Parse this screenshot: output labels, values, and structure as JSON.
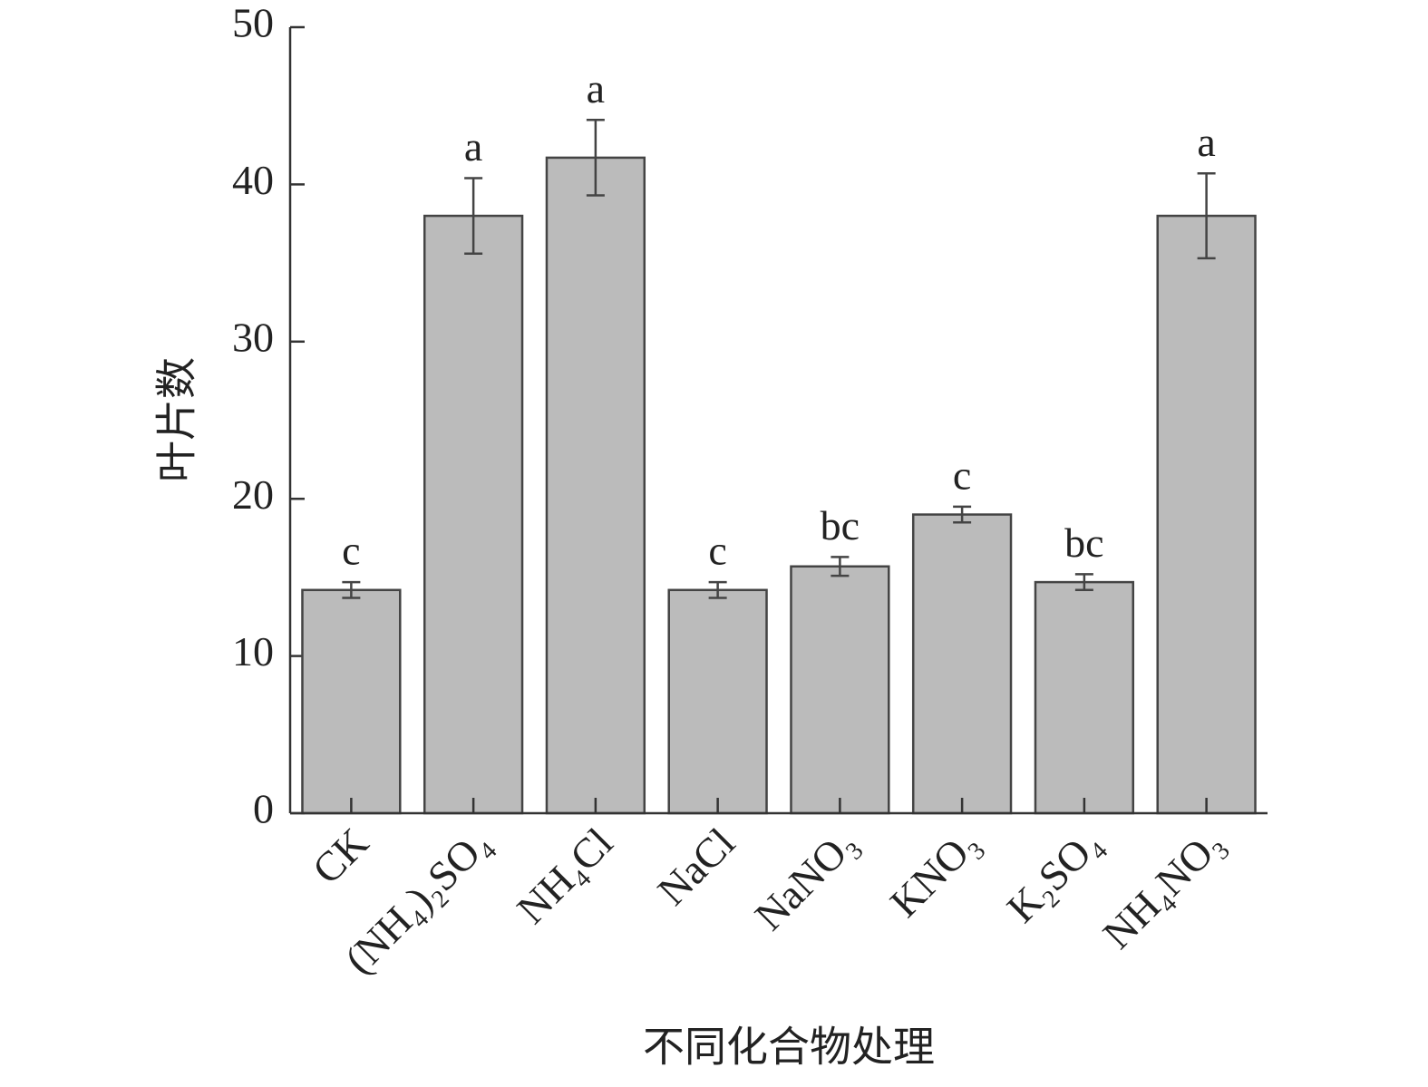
{
  "chart_data": {
    "type": "bar",
    "x_label": "不同化合物处理",
    "y_label": "叶片数",
    "categories": [
      "CK",
      "(NH₄)₂SO₄",
      "NH₄Cl",
      "NaCl",
      "NaNO₃",
      "KNO₃",
      "K₂SO₄",
      "NH₄NO₃"
    ],
    "values": [
      14.2,
      38,
      41.7,
      14.2,
      15.7,
      19,
      14.7,
      38
    ],
    "errors": [
      0.5,
      2.4,
      2.4,
      0.5,
      0.6,
      0.5,
      0.5,
      2.7
    ],
    "annotations": [
      "c",
      "a",
      "a",
      "c",
      "bc",
      "c",
      "bc",
      "a"
    ],
    "color": "#bbbbbb",
    "ylim": [
      0,
      50
    ],
    "yticks": [
      0,
      10,
      20,
      30,
      40,
      50
    ],
    "grid": false
  }
}
